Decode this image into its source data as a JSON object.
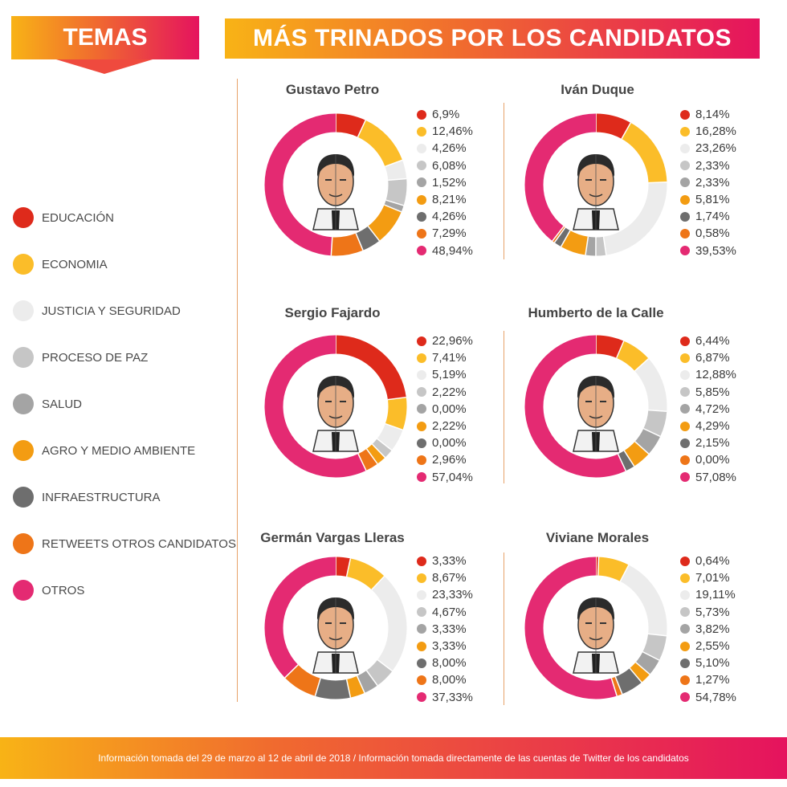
{
  "header": {
    "temas_title": "TEMAS",
    "main_title": "MÁS TRINADOS POR LOS CANDIDATOS"
  },
  "legend": [
    {
      "label": "EDUCACIÓN",
      "color": "#de2a1b"
    },
    {
      "label": "ECONOMIA",
      "color": "#fbbd29"
    },
    {
      "label": "JUSTICIA Y SEGURIDAD",
      "color": "#ececec"
    },
    {
      "label": "PROCESO DE PAZ",
      "color": "#c6c6c6"
    },
    {
      "label": "SALUD",
      "color": "#a4a4a4"
    },
    {
      "label": "AGRO Y MEDIO AMBIENTE",
      "color": "#f39c12"
    },
    {
      "label": "INFRAESTRUCTURA",
      "color": "#6e6e6e"
    },
    {
      "label": "RETWEETS OTROS CANDIDATOS",
      "color": "#ee7518"
    },
    {
      "label": "OTROS",
      "color": "#e42a72"
    }
  ],
  "chart_data": [
    {
      "type": "pie",
      "title": "Gustavo Petro",
      "categories": [
        "EDUCACIÓN",
        "ECONOMIA",
        "JUSTICIA Y SEGURIDAD",
        "PROCESO DE PAZ",
        "SALUD",
        "AGRO Y MEDIO AMBIENTE",
        "INFRAESTRUCTURA",
        "RETWEETS OTROS CANDIDATOS",
        "OTROS"
      ],
      "values": [
        6.9,
        12.46,
        4.26,
        6.08,
        1.52,
        8.21,
        4.26,
        7.29,
        48.94
      ],
      "labels": [
        "6,9%",
        "12,46%",
        "4,26%",
        "6,08%",
        "1,52%",
        "8,21%",
        "4,26%",
        "7,29%",
        "48,94%"
      ]
    },
    {
      "type": "pie",
      "title": "Iván Duque",
      "categories": [
        "EDUCACIÓN",
        "ECONOMIA",
        "JUSTICIA Y SEGURIDAD",
        "PROCESO DE PAZ",
        "SALUD",
        "AGRO Y MEDIO AMBIENTE",
        "INFRAESTRUCTURA",
        "RETWEETS OTROS CANDIDATOS",
        "OTROS"
      ],
      "values": [
        8.14,
        16.28,
        23.26,
        2.33,
        2.33,
        5.81,
        1.74,
        0.58,
        39.53
      ],
      "labels": [
        "8,14%",
        "16,28%",
        "23,26%",
        "2,33%",
        "2,33%",
        "5,81%",
        "1,74%",
        "0,58%",
        "39,53%"
      ]
    },
    {
      "type": "pie",
      "title": "Sergio Fajardo",
      "categories": [
        "EDUCACIÓN",
        "ECONOMIA",
        "JUSTICIA Y SEGURIDAD",
        "PROCESO DE PAZ",
        "SALUD",
        "AGRO Y MEDIO AMBIENTE",
        "INFRAESTRUCTURA",
        "RETWEETS OTROS CANDIDATOS",
        "OTROS"
      ],
      "values": [
        22.96,
        7.41,
        5.19,
        2.22,
        0.0,
        2.22,
        0.0,
        2.96,
        57.04
      ],
      "labels": [
        "22,96%",
        "7,41%",
        "5,19%",
        "2,22%",
        "0,00%",
        "2,22%",
        "0,00%",
        "2,96%",
        "57,04%"
      ]
    },
    {
      "type": "pie",
      "title": "Humberto de la Calle",
      "categories": [
        "EDUCACIÓN",
        "ECONOMIA",
        "JUSTICIA Y SEGURIDAD",
        "PROCESO DE PAZ",
        "SALUD",
        "AGRO Y MEDIO AMBIENTE",
        "INFRAESTRUCTURA",
        "RETWEETS OTROS CANDIDATOS",
        "OTROS"
      ],
      "values": [
        6.44,
        6.87,
        12.88,
        5.85,
        4.72,
        4.29,
        2.15,
        0.0,
        57.08
      ],
      "labels": [
        "6,44%",
        "6,87%",
        "12,88%",
        "5,85%",
        "4,72%",
        "4,29%",
        "2,15%",
        "0,00%",
        "57,08%"
      ]
    },
    {
      "type": "pie",
      "title": "Germán Vargas Lleras",
      "categories": [
        "EDUCACIÓN",
        "ECONOMIA",
        "JUSTICIA Y SEGURIDAD",
        "PROCESO DE PAZ",
        "SALUD",
        "AGRO Y MEDIO AMBIENTE",
        "INFRAESTRUCTURA",
        "RETWEETS OTROS CANDIDATOS",
        "OTROS"
      ],
      "values": [
        3.33,
        8.67,
        23.33,
        4.67,
        3.33,
        3.33,
        8.0,
        8.0,
        37.33
      ],
      "labels": [
        "3,33%",
        "8,67%",
        "23,33%",
        "4,67%",
        "3,33%",
        "3,33%",
        "8,00%",
        "8,00%",
        "37,33%"
      ]
    },
    {
      "type": "pie",
      "title": "Viviane Morales",
      "categories": [
        "EDUCACIÓN",
        "ECONOMIA",
        "JUSTICIA Y SEGURIDAD",
        "PROCESO DE PAZ",
        "SALUD",
        "AGRO Y MEDIO AMBIENTE",
        "INFRAESTRUCTURA",
        "RETWEETS OTROS CANDIDATOS",
        "OTROS"
      ],
      "values": [
        0.64,
        7.01,
        19.11,
        5.73,
        3.82,
        2.55,
        5.1,
        1.27,
        54.78
      ],
      "labels": [
        "0,64%",
        "7,01%",
        "19,11%",
        "5,73%",
        "3,82%",
        "2,55%",
        "5,10%",
        "1,27%",
        "54,78%"
      ]
    }
  ],
  "footer": {
    "text": "Información tomada del 29 de marzo al 12 de abril de 2018 / Información tomada directamente de las cuentas de Twitter de los candidatos"
  }
}
